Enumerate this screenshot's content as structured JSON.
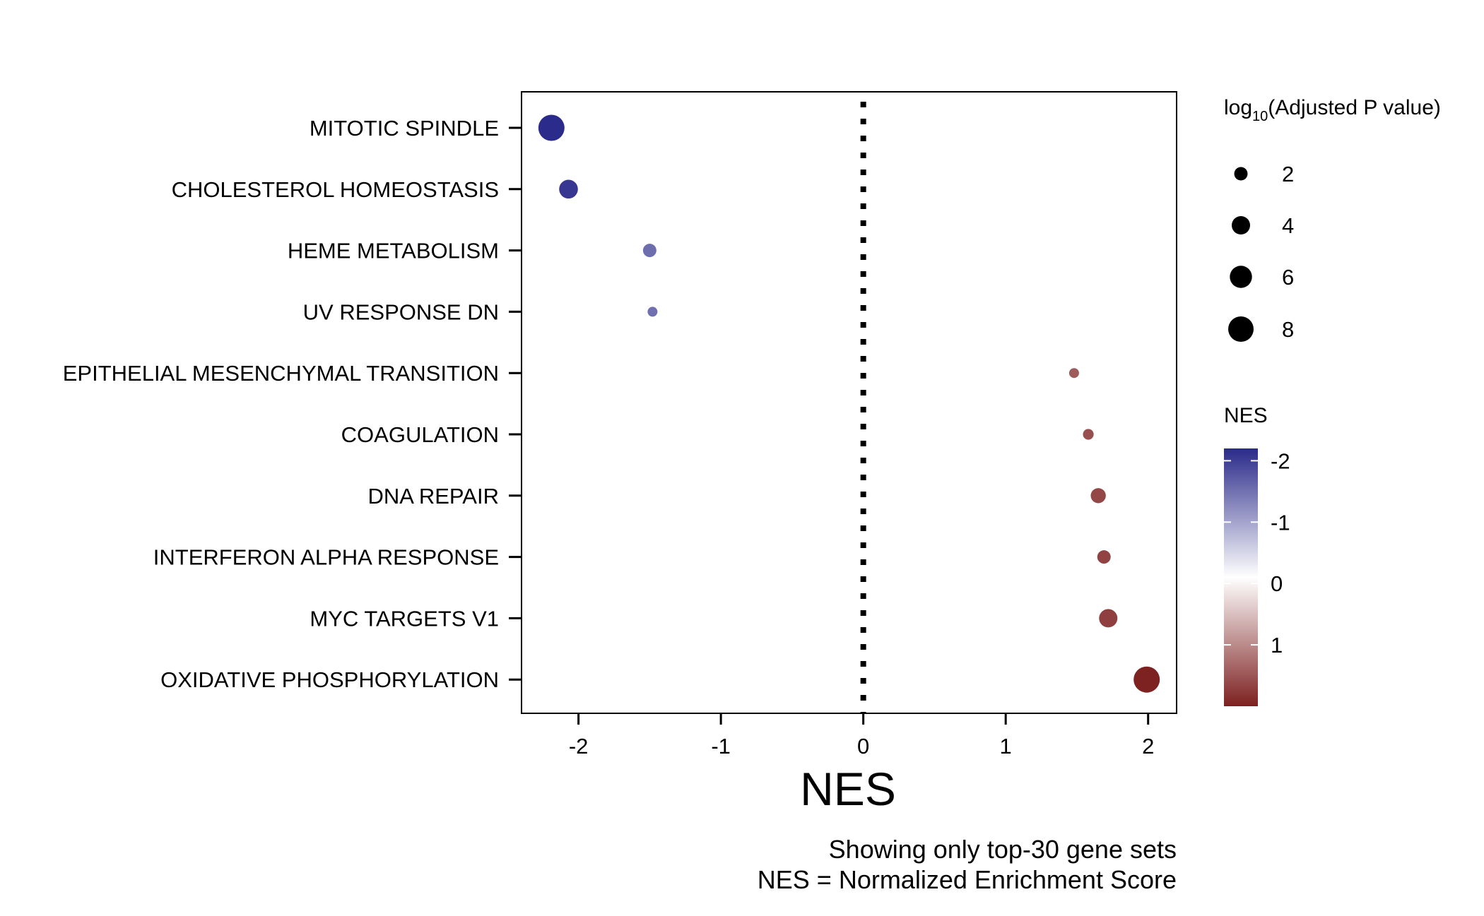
{
  "chart_data": {
    "type": "scatter",
    "categories": [
      "MITOTIC SPINDLE",
      "CHOLESTEROL HOMEOSTASIS",
      "HEME METABOLISM",
      "UV RESPONSE DN",
      "EPITHELIAL MESENCHYMAL TRANSITION",
      "COAGULATION",
      "DNA REPAIR",
      "INTERFERON ALPHA RESPONSE",
      "MYC TARGETS V1",
      "OXIDATIVE PHOSPHORYLATION"
    ],
    "nes": [
      -2.19,
      -2.07,
      -1.5,
      -1.48,
      1.48,
      1.58,
      1.65,
      1.69,
      1.72,
      1.99
    ],
    "log10_adj_p": [
      8.5,
      4.2,
      2.0,
      1.0,
      1.0,
      1.2,
      2.6,
      2.0,
      4.0,
      8.5
    ],
    "xlabel": "NES",
    "xlim": [
      -2.4,
      2.2
    ],
    "xticks": [
      -2,
      -1,
      0,
      1,
      2
    ],
    "xtick_labels": [
      "-2",
      "-1",
      "0",
      "1",
      "2"
    ],
    "reference_line_x": 0,
    "size_legend": {
      "title_main": "log",
      "title_sub": "10",
      "title_rest": "(Adjusted P value)",
      "values": [
        2,
        4,
        6,
        8
      ],
      "labels": [
        "2",
        "4",
        "6",
        "8"
      ]
    },
    "color_legend": {
      "title": "NES",
      "ticks": [
        -2,
        -1,
        0,
        1
      ],
      "labels": [
        "-2",
        "-1",
        "0",
        "1"
      ],
      "range": [
        -2.2,
        2.0
      ],
      "low_color": "#2a2a8a",
      "mid_color": "#ffffff",
      "high_color": "#7d2020"
    },
    "caption_lines": [
      "Showing only top-30 gene sets",
      "NES = Normalized Enrichment Score"
    ]
  }
}
